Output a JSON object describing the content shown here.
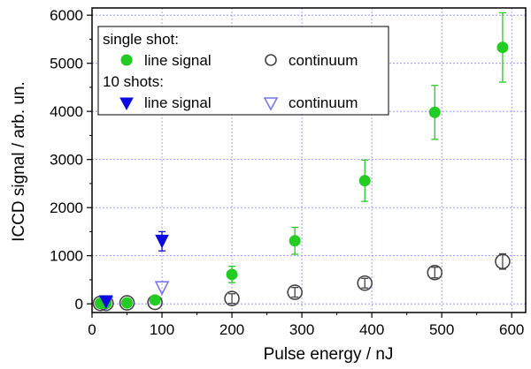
{
  "chart_data": {
    "type": "scatter",
    "xlabel": "Pulse energy / nJ",
    "ylabel": "ICCD signal / arb. un.",
    "xlim": [
      0,
      620
    ],
    "ylim": [
      -180,
      6150
    ],
    "xticks": [
      0,
      100,
      200,
      300,
      400,
      500,
      600
    ],
    "yticks": [
      0,
      1000,
      2000,
      3000,
      4000,
      5000,
      6000
    ],
    "grid": true,
    "legend_position": "top-left",
    "legend": {
      "group_single": "single shot:",
      "group_ten": "10 shots:",
      "line_signal_label": "line signal",
      "continuum_label": "continuum"
    },
    "series": [
      {
        "id": "single_line",
        "group": "single shot:",
        "name": "line signal",
        "marker": "filled-circle",
        "color": "#22cc22",
        "x": [
          12,
          20,
          50,
          90,
          200,
          290,
          390,
          490,
          587
        ],
        "y": [
          10,
          10,
          20,
          80,
          610,
          1310,
          2560,
          3980,
          5330
        ],
        "err": [
          0,
          0,
          0,
          0,
          170,
          280,
          430,
          560,
          720
        ]
      },
      {
        "id": "single_cont",
        "group": "single shot:",
        "name": "continuum",
        "marker": "open-circle",
        "color": "#444444",
        "x": [
          12,
          20,
          50,
          90,
          200,
          290,
          390,
          490,
          587
        ],
        "y": [
          10,
          10,
          20,
          30,
          110,
          240,
          430,
          650,
          880
        ],
        "err": [
          0,
          0,
          0,
          0,
          100,
          100,
          100,
          110,
          160
        ]
      },
      {
        "id": "ten_line",
        "group": "10 shots:",
        "name": "line signal",
        "marker": "filled-triangle-down",
        "color": "#0a0ae0",
        "x": [
          20,
          100
        ],
        "y": [
          40,
          1300
        ],
        "err": [
          0,
          200
        ]
      },
      {
        "id": "ten_cont",
        "group": "10 shots:",
        "name": "continuum",
        "marker": "open-triangle-down",
        "color": "#7777ee",
        "x": [
          20,
          100
        ],
        "y": [
          10,
          330
        ],
        "err": [
          0,
          0
        ]
      }
    ]
  }
}
